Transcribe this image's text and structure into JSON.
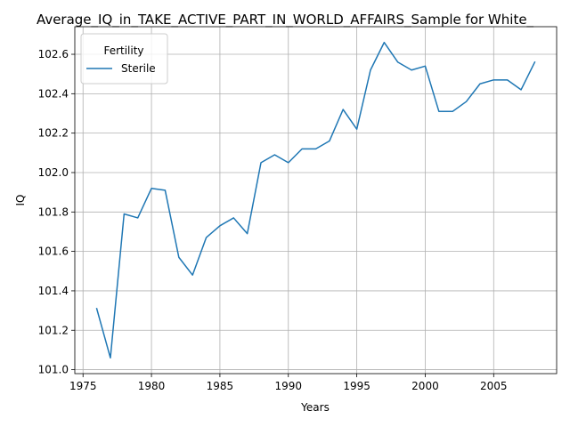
{
  "chart_data": {
    "type": "line",
    "title": "Average_IQ_in_TAKE_ACTIVE_PART_IN_WORLD_AFFAIRS_Sample for White_",
    "xlabel": "Years",
    "ylabel": "IQ",
    "xlim": [
      1974.4,
      2009.6
    ],
    "ylim": [
      100.98,
      102.74
    ],
    "xticks": [
      1975,
      1980,
      1985,
      1990,
      1995,
      2000,
      2005
    ],
    "yticks": [
      101.0,
      101.2,
      101.4,
      101.6,
      101.8,
      102.0,
      102.2,
      102.4,
      102.6
    ],
    "ytick_labels": [
      "101.0",
      "101.2",
      "101.4",
      "101.6",
      "101.8",
      "102.0",
      "102.2",
      "102.4",
      "102.6"
    ],
    "grid": true,
    "legend": {
      "title": "Fertility",
      "placement": "top-left"
    },
    "series": [
      {
        "name": "Sterile",
        "color": "#1f77b4",
        "x": [
          1976,
          1977,
          1978,
          1979,
          1980,
          1981,
          1982,
          1983,
          1984,
          1985,
          1986,
          1987,
          1988,
          1989,
          1990,
          1991,
          1992,
          1993,
          1994,
          1995,
          1996,
          1997,
          1998,
          1999,
          2000,
          2001,
          2002,
          2003,
          2004,
          2005,
          2006,
          2007,
          2008
        ],
        "y": [
          101.31,
          101.06,
          101.79,
          101.77,
          101.92,
          101.91,
          101.57,
          101.48,
          101.67,
          101.73,
          101.77,
          101.69,
          102.05,
          102.09,
          102.05,
          102.12,
          102.12,
          102.16,
          102.32,
          102.22,
          102.52,
          102.66,
          102.56,
          102.52,
          102.54,
          102.31,
          102.31,
          102.36,
          102.45,
          102.47,
          102.47,
          102.42,
          102.56
        ]
      }
    ]
  }
}
